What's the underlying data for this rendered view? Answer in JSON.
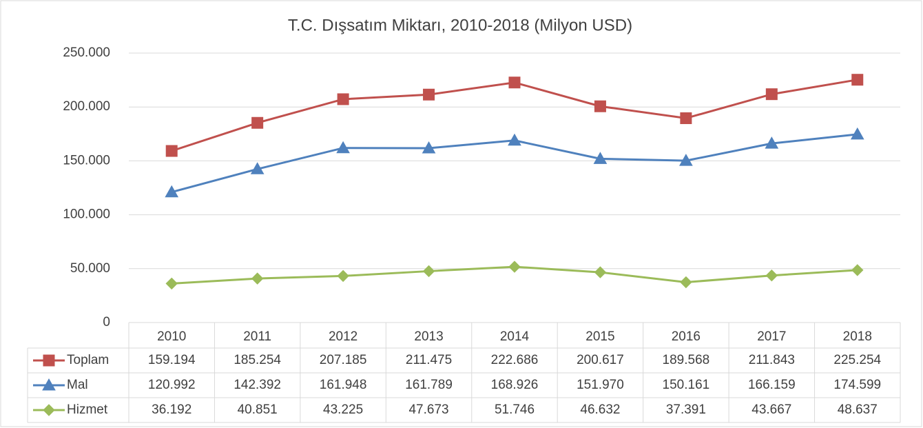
{
  "chart_data": {
    "type": "line",
    "title": "T.C. Dışsatım Miktarı, 2010-2018 (Milyon USD)",
    "categories": [
      "2010",
      "2011",
      "2012",
      "2013",
      "2014",
      "2015",
      "2016",
      "2017",
      "2018"
    ],
    "series": [
      {
        "name": "Toplam",
        "color": "#c0504d",
        "marker": "square",
        "values": [
          159194,
          185254,
          207185,
          211475,
          222686,
          200617,
          189568,
          211843,
          225254
        ],
        "value_labels": [
          "159.194",
          "185.254",
          "207.185",
          "211.475",
          "222.686",
          "200.617",
          "189.568",
          "211.843",
          "225.254"
        ]
      },
      {
        "name": "Mal",
        "color": "#4f81bd",
        "marker": "triangle",
        "values": [
          120992,
          142392,
          161948,
          161789,
          168926,
          151970,
          150161,
          166159,
          174599
        ],
        "value_labels": [
          "120.992",
          "142.392",
          "161.948",
          "161.789",
          "168.926",
          "151.970",
          "150.161",
          "166.159",
          "174.599"
        ]
      },
      {
        "name": "Hizmet",
        "color": "#9bbb59",
        "marker": "diamond",
        "values": [
          36192,
          40851,
          43225,
          47673,
          51746,
          46632,
          37391,
          43667,
          48637
        ],
        "value_labels": [
          "36.192",
          "40.851",
          "43.225",
          "47.673",
          "51.746",
          "46.632",
          "37.391",
          "43.667",
          "48.637"
        ]
      }
    ],
    "ylim": [
      0,
      250000
    ],
    "yticks": [
      0,
      {
        "value": 50000,
        "label": "50.000"
      },
      {
        "value": 100000,
        "label": "100.000"
      },
      {
        "value": 150000,
        "label": "150.000"
      },
      {
        "value": 200000,
        "label": "200.000"
      },
      {
        "value": 250000,
        "label": "250.000"
      }
    ],
    "grid": true
  }
}
